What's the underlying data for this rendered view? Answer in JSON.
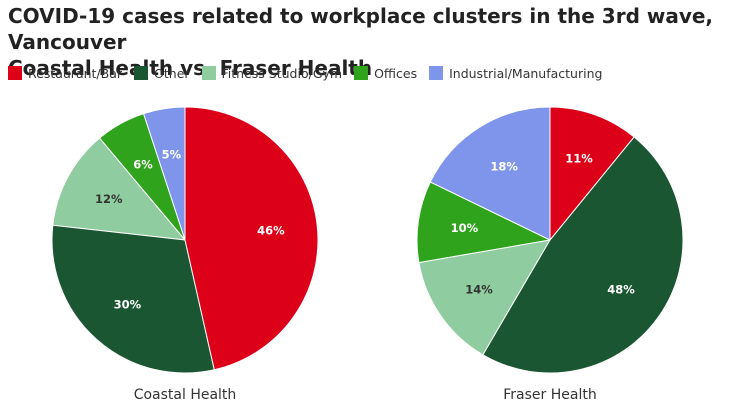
{
  "title_line1": "COVID-19 cases related to workplace clusters in the 3rd wave, Vancouver",
  "title_line2": "Coastal Health vs. Fraser Health",
  "legend": [
    {
      "name": "Restaurant/Bar",
      "color": "#dd0019"
    },
    {
      "name": "Other",
      "color": "#1a5632"
    },
    {
      "name": "Fitness Studio/Gym",
      "color": "#8fcc9f"
    },
    {
      "name": "Offices",
      "color": "#2fa31c"
    },
    {
      "name": "Industrial/Manufacturing",
      "color": "#7f95eb"
    }
  ],
  "chart_data": [
    {
      "type": "pie",
      "title": "Coastal Health",
      "categories": [
        "Restaurant/Bar",
        "Other",
        "Fitness Studio/Gym",
        "Offices",
        "Industrial/Manufacturing"
      ],
      "values": [
        46,
        30,
        12,
        6,
        5
      ],
      "labels": [
        "46%",
        "30%",
        "12%",
        "6%",
        "5%"
      ],
      "label_colors": [
        "#ffffff",
        "#ffffff",
        "#333333",
        "#ffffff",
        "#ffffff"
      ],
      "colors": [
        "#dd0019",
        "#1a5632",
        "#8fcc9f",
        "#2fa31c",
        "#7f95eb"
      ],
      "legend_position": "top-left"
    },
    {
      "type": "pie",
      "title": "Fraser Health",
      "categories": [
        "Restaurant/Bar",
        "Other",
        "Fitness Studio/Gym",
        "Offices",
        "Industrial/Manufacturing"
      ],
      "values": [
        11,
        48,
        14,
        10,
        18
      ],
      "labels": [
        "11%",
        "48%",
        "14%",
        "10%",
        "18%"
      ],
      "label_colors": [
        "#ffffff",
        "#ffffff",
        "#333333",
        "#ffffff",
        "#ffffff"
      ],
      "colors": [
        "#dd0019",
        "#1a5632",
        "#8fcc9f",
        "#2fa31c",
        "#7f95eb"
      ],
      "legend_position": "top-left"
    }
  ]
}
